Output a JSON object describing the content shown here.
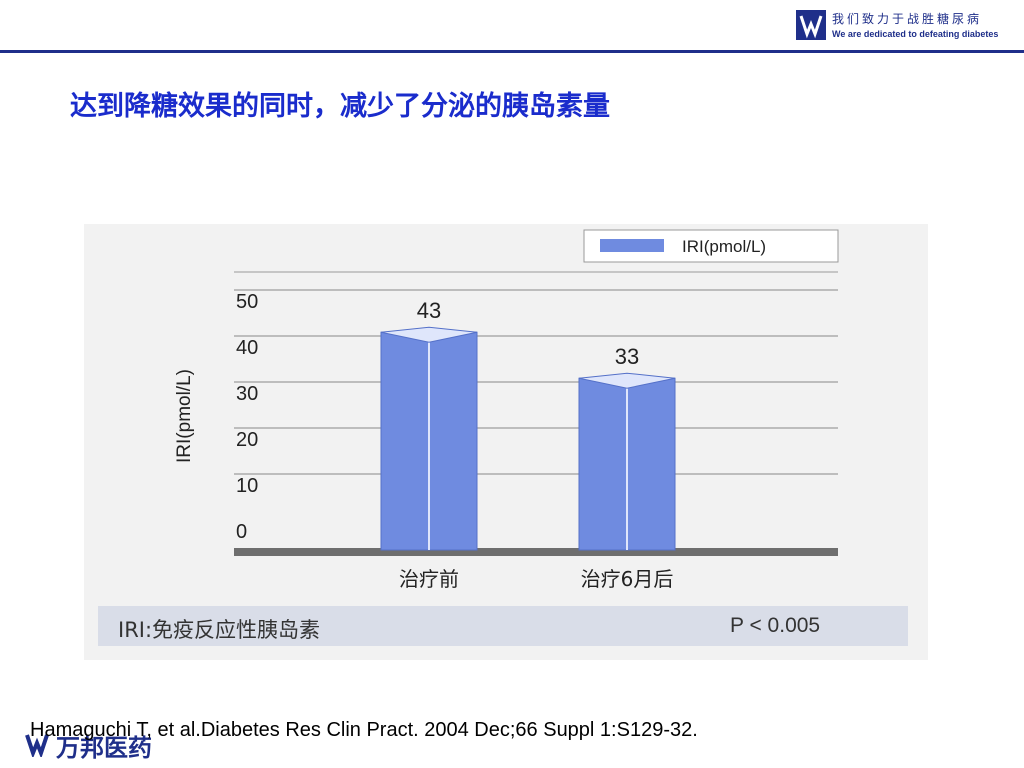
{
  "header": {
    "slogan_cn": "我们致力于战胜糖尿病",
    "slogan_en": "We are dedicated to defeating diabetes"
  },
  "slide": {
    "title": "达到降糖效果的同时，减少了分泌的胰岛素量"
  },
  "chart_data": {
    "type": "bar",
    "categories": [
      "治疗前",
      "治疗6月后"
    ],
    "series": [
      {
        "name": "IRI(pmol/L)",
        "values": [
          43,
          33
        ]
      }
    ],
    "data_labels": [
      "43",
      "33"
    ],
    "title": "",
    "xlabel": "",
    "ylabel": "IRI(pmol/L)",
    "ylim": [
      0,
      50
    ],
    "yticks": [
      0,
      10,
      20,
      30,
      40,
      50
    ],
    "ytick_labels": [
      "0",
      "10",
      "20",
      "30",
      "40",
      "50"
    ],
    "grid": true,
    "legend_position": "top-right",
    "bar_color": "#6f8be0"
  },
  "figure_notes": {
    "left": "IRI:免疫反应性胰岛素",
    "right": "P < 0.005"
  },
  "footer": {
    "company": "万邦医药",
    "citation": "Hamaguchi T, et al.Diabetes Res Clin Pract. 2004 Dec;66 Suppl 1:S129-32."
  }
}
